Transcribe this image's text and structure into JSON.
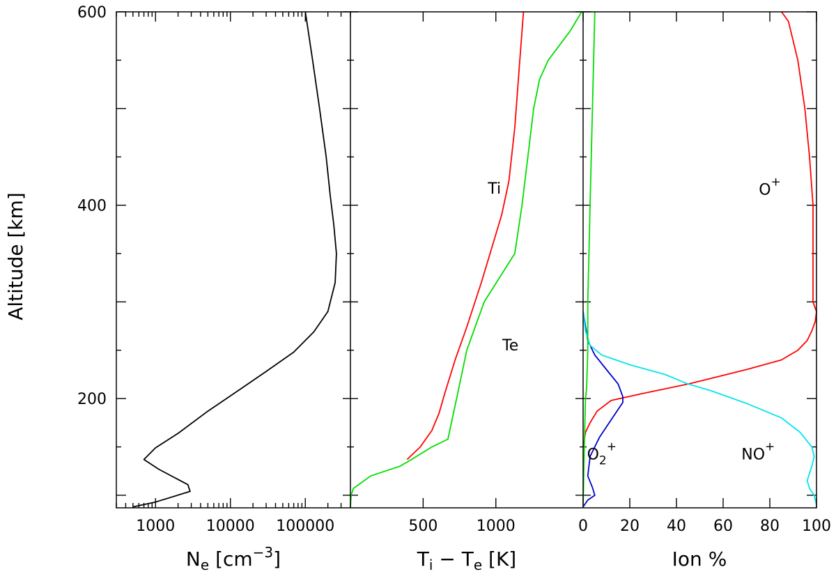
{
  "chart_data": [
    {
      "type": "line",
      "panel": "electron-density",
      "xscale": "log",
      "xlim": [
        300,
        400000
      ],
      "ylim": [
        87,
        600
      ],
      "ylabel": "Altitude [km]",
      "xlabel": {
        "base": "N",
        "sub": "e",
        "pre": " [cm",
        "sup": "−3",
        "post": "]"
      },
      "xticks": [
        {
          "v": 1000,
          "label": "1000"
        },
        {
          "v": 10000,
          "label": "10000"
        },
        {
          "v": 100000,
          "label": "100000"
        }
      ],
      "yticks": [
        {
          "v": 200,
          "label": "200"
        },
        {
          "v": 400,
          "label": "400"
        },
        {
          "v": 600,
          "label": "600"
        }
      ],
      "series": [
        {
          "color": "#000000",
          "points": [
            [
              500,
              88
            ],
            [
              1000,
              93
            ],
            [
              2900,
              104
            ],
            [
              2700,
              111
            ],
            [
              1100,
              127
            ],
            [
              700,
              137
            ],
            [
              1000,
              149
            ],
            [
              2000,
              164
            ],
            [
              5000,
              187
            ],
            [
              12000,
              207
            ],
            [
              30000,
              228
            ],
            [
              70000,
              248
            ],
            [
              130000,
              269
            ],
            [
              200000,
              290
            ],
            [
              250000,
              320
            ],
            [
              260000,
              350
            ],
            [
              240000,
              380
            ],
            [
              215000,
              410
            ],
            [
              190000,
              450
            ],
            [
              155000,
              500
            ],
            [
              125000,
              550
            ],
            [
              100000,
              600
            ]
          ]
        }
      ]
    },
    {
      "type": "line",
      "panel": "temperature",
      "xlim": [
        0,
        1600
      ],
      "ylim": [
        87,
        600
      ],
      "xlabel": {
        "a": "T",
        "asub": "i",
        "mid": " − T",
        "bsub": "e",
        "post": " [K]"
      },
      "xticks": [
        {
          "v": 500,
          "label": "500"
        },
        {
          "v": 1000,
          "label": "1000"
        }
      ],
      "series": [
        {
          "name": "Ti",
          "color": "#ff0000",
          "points": [
            [
              390,
              137
            ],
            [
              480,
              150
            ],
            [
              560,
              167
            ],
            [
              610,
              185
            ],
            [
              650,
              206
            ],
            [
              720,
              240
            ],
            [
              800,
              274
            ],
            [
              900,
              320
            ],
            [
              980,
              360
            ],
            [
              1040,
              390
            ],
            [
              1090,
              425
            ],
            [
              1130,
              480
            ],
            [
              1160,
              540
            ],
            [
              1190,
              600
            ]
          ]
        },
        {
          "name": "Te",
          "color": "#00dd00",
          "points": [
            [
              0,
              88
            ],
            [
              5,
              100
            ],
            [
              20,
              107
            ],
            [
              140,
              120
            ],
            [
              340,
              130
            ],
            [
              420,
              137
            ],
            [
              560,
              150
            ],
            [
              670,
              158
            ],
            [
              730,
              200
            ],
            [
              800,
              250
            ],
            [
              920,
              300
            ],
            [
              1130,
              350
            ],
            [
              1180,
              400
            ],
            [
              1220,
              450
            ],
            [
              1260,
              500
            ],
            [
              1300,
              530
            ],
            [
              1360,
              550
            ],
            [
              1510,
              580
            ],
            [
              1590,
              600
            ]
          ]
        }
      ],
      "annotations": [
        {
          "text": "Ti",
          "x": 990,
          "y": 412
        },
        {
          "text": "Te",
          "x": 1100,
          "y": 250
        }
      ]
    },
    {
      "type": "line",
      "panel": "ion-composition",
      "xlim": [
        0,
        100
      ],
      "ylim": [
        87,
        600
      ],
      "xlabel": "Ion %",
      "xticks": [
        {
          "v": 0,
          "label": "0"
        },
        {
          "v": 20,
          "label": "20"
        },
        {
          "v": 40,
          "label": "40"
        },
        {
          "v": 60,
          "label": "60"
        },
        {
          "v": 80,
          "label": "80"
        },
        {
          "v": 100,
          "label": "100"
        }
      ],
      "series": [
        {
          "name": "O+",
          "color": "#ff0000",
          "points": [
            [
              0,
              150
            ],
            [
              1,
              165
            ],
            [
              3,
              175
            ],
            [
              6,
              187
            ],
            [
              12,
              198
            ],
            [
              25,
              205
            ],
            [
              45,
              215
            ],
            [
              70,
              230
            ],
            [
              85,
              240
            ],
            [
              92,
              250
            ],
            [
              96,
              260
            ],
            [
              98,
              270
            ],
            [
              99.5,
              280
            ],
            [
              100,
              290
            ],
            [
              98.5,
              300
            ],
            [
              98.5,
              350
            ],
            [
              98.5,
              400
            ],
            [
              97,
              450
            ],
            [
              95,
              500
            ],
            [
              92,
              550
            ],
            [
              88,
              590
            ],
            [
              85,
              600
            ]
          ]
        },
        {
          "name": "O2+",
          "color": "#0000cc",
          "points": [
            [
              0,
              88
            ],
            [
              2,
              95
            ],
            [
              5,
              100
            ],
            [
              4,
              108
            ],
            [
              2,
              120
            ],
            [
              3,
              140
            ],
            [
              7,
              160
            ],
            [
              12,
              178
            ],
            [
              17,
              196
            ],
            [
              17,
              202
            ],
            [
              15,
              215
            ],
            [
              10,
              230
            ],
            [
              5,
              245
            ],
            [
              2,
              260
            ],
            [
              1,
              275
            ],
            [
              0,
              290
            ]
          ]
        },
        {
          "name": "NO+",
          "color": "#00e5ee",
          "points": [
            [
              0,
              290
            ],
            [
              1,
              270
            ],
            [
              3,
              255
            ],
            [
              8,
              245
            ],
            [
              20,
              235
            ],
            [
              35,
              225
            ],
            [
              45,
              215
            ],
            [
              55,
              208
            ],
            [
              70,
              195
            ],
            [
              85,
              180
            ],
            [
              93,
              165
            ],
            [
              98,
              150
            ],
            [
              99,
              140
            ],
            [
              98,
              130
            ],
            [
              96,
              115
            ],
            [
              97,
              107
            ],
            [
              99,
              100
            ],
            [
              100,
              90
            ]
          ]
        },
        {
          "color": "#00dd00",
          "points": [
            [
              0,
              88
            ],
            [
              0.5,
              150
            ],
            [
              1,
              200
            ],
            [
              1.5,
              210
            ],
            [
              2,
              250
            ],
            [
              2,
              300
            ],
            [
              2.5,
              350
            ],
            [
              3,
              400
            ],
            [
              3.5,
              450
            ],
            [
              4,
              500
            ],
            [
              4.5,
              550
            ],
            [
              5,
              600
            ]
          ]
        }
      ],
      "annotations": [
        {
          "base": "O",
          "sup": "+",
          "x": 80,
          "y": 411
        },
        {
          "base": "O",
          "sub": "2",
          "sup": "+",
          "x": 8,
          "y": 137
        },
        {
          "base": "NO",
          "sup": "+",
          "x": 75,
          "y": 137
        }
      ]
    }
  ]
}
